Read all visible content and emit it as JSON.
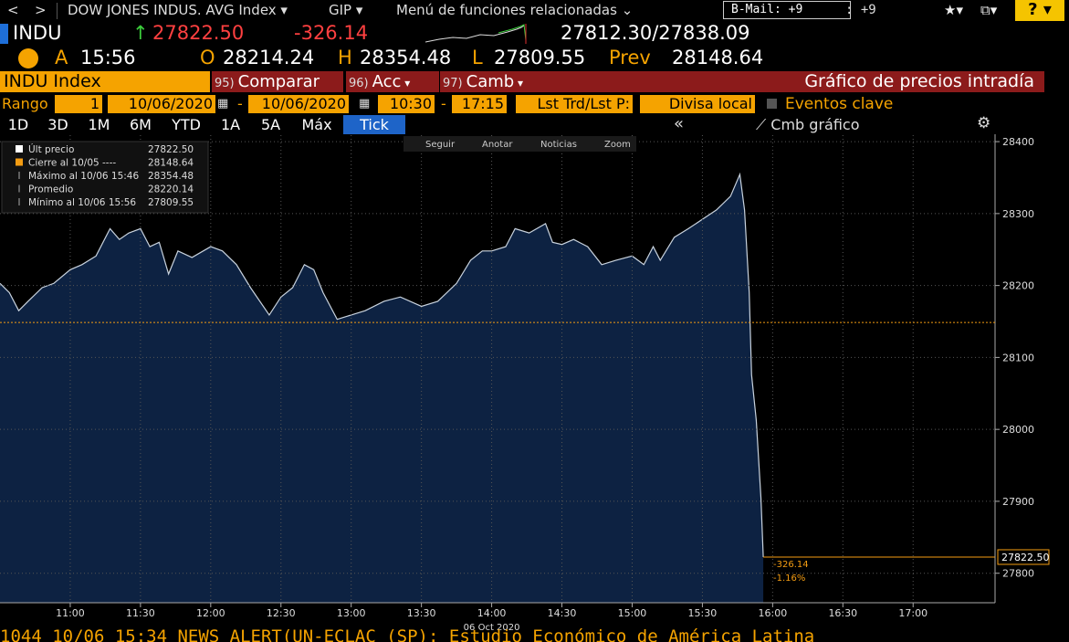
{
  "toolbar": {
    "security": "DOW JONES INDUS. AVG Index",
    "gip": "GIP",
    "menu": "Menú de funciones relacionadas",
    "bmail": "B-Mail: +9",
    "bmail_count": ": +9"
  },
  "quote": {
    "ticker": "INDU",
    "arrow": "↑",
    "last": "27822.50",
    "change": "-326.14",
    "bid_ask": "27812.30/27838.09",
    "time_flag": "A",
    "time": "15:56",
    "open_label": "O",
    "open": "28214.24",
    "high_label": "H",
    "high": "28354.48",
    "low_label": "L",
    "low": "27809.55",
    "prev_label": "Prev",
    "prev": "28148.64"
  },
  "function_bar": {
    "security": "INDU Index",
    "buttons": [
      {
        "num": "95)",
        "label": "Comparar"
      },
      {
        "num": "96)",
        "label": "Acc"
      },
      {
        "num": "97)",
        "label": "Camb"
      }
    ],
    "title": "Gráfico de precios intradía"
  },
  "range_bar": {
    "label": "Rango",
    "periods": "1",
    "start_date": "10/06/2020",
    "separator": "-",
    "end_date": "10/06/2020",
    "start_time": "10:30",
    "end_time": "17:15",
    "price_type": "Lst Trd/Lst P:",
    "currency": "Divisa local",
    "events": "Eventos clave"
  },
  "tabs": [
    "1D",
    "3D",
    "1M",
    "6M",
    "YTD",
    "1A",
    "5A",
    "Máx",
    "Tick"
  ],
  "collapse": "«",
  "chart_button": "Cmb gráfico",
  "chart_tools": [
    "Seguir",
    "Anotar",
    "Noticias",
    "Zoom"
  ],
  "news_ticker": "1044 10/06 15:34 NEWS ALERT(UN-ECLAC (SP): Estudio Económico de América Latina",
  "chart_data": {
    "type": "area",
    "x_label": "06 Oct 2020",
    "x": [
      "10:30",
      "10:34",
      "10:38",
      "10:42",
      "10:48",
      "10:53",
      "11:00",
      "11:05",
      "11:11",
      "11:17",
      "11:21",
      "11:25",
      "11:30",
      "11:34",
      "11:38",
      "11:42",
      "11:46",
      "11:52",
      "12:00",
      "12:05",
      "12:11",
      "12:17",
      "12:25",
      "12:30",
      "12:35",
      "12:40",
      "12:44",
      "12:48",
      "12:54",
      "13:00",
      "13:06",
      "13:14",
      "13:21",
      "13:30",
      "13:37",
      "13:45",
      "13:51",
      "13:56",
      "14:00",
      "14:06",
      "14:10",
      "14:16",
      "14:23",
      "14:26",
      "14:30",
      "14:35",
      "14:41",
      "14:47",
      "14:53",
      "15:00",
      "15:05",
      "15:09",
      "15:12",
      "15:18",
      "15:24",
      "15:30",
      "15:36",
      "15:42",
      "15:46",
      "15:48",
      "15:50",
      "15:51",
      "15:53",
      "15:55",
      "15:56"
    ],
    "values": [
      28203,
      28190,
      28165,
      28178,
      28197,
      28203,
      28222,
      28229,
      28241,
      28279,
      28264,
      28273,
      28279,
      28254,
      28260,
      28216,
      28248,
      28239,
      28254,
      28248,
      28229,
      28197,
      28159,
      28184,
      28197,
      28229,
      28222,
      28190,
      28153,
      28159,
      28165,
      28178,
      28184,
      28171,
      28178,
      28203,
      28235,
      28248,
      28248,
      28254,
      28279,
      28273,
      28286,
      28260,
      28257,
      28264,
      28254,
      28229,
      28235,
      28241,
      28229,
      28254,
      28235,
      28267,
      28279,
      28292,
      28305,
      28324,
      28354.48,
      28305,
      28190,
      28076,
      28013,
      27905,
      27822.5
    ],
    "color": "#0d2242",
    "line_color": "#c9d3de",
    "xlim": [
      "10:30",
      "17:35"
    ],
    "xticks": [
      "11:00",
      "11:30",
      "12:00",
      "12:30",
      "13:00",
      "13:30",
      "14:00",
      "14:30",
      "15:00",
      "15:30",
      "16:00",
      "16:30",
      "17:00"
    ],
    "ylim": [
      27759,
      28409
    ],
    "yticks": [
      27800,
      27900,
      28000,
      28100,
      28200,
      28300,
      28400
    ],
    "grid": true,
    "prev_close": 28148.64,
    "prev_close_color": "#f39c12",
    "last": {
      "value": 27822.5,
      "label": "27822.50"
    },
    "last_color": "#f39c12",
    "change_labels": [
      "-326.14",
      "-1.16%"
    ],
    "legend": [
      {
        "label": "Últ precio",
        "value": "27822.50"
      },
      {
        "label": "Cierre al 10/05 ----",
        "value": "28148.64"
      },
      {
        "label": "Máximo al 10/06 15:46",
        "value": "28354.48"
      },
      {
        "label": "Promedio",
        "value": "28220.14"
      },
      {
        "label": "Mínimo al 10/06 15:56",
        "value": "27809.55"
      }
    ]
  }
}
